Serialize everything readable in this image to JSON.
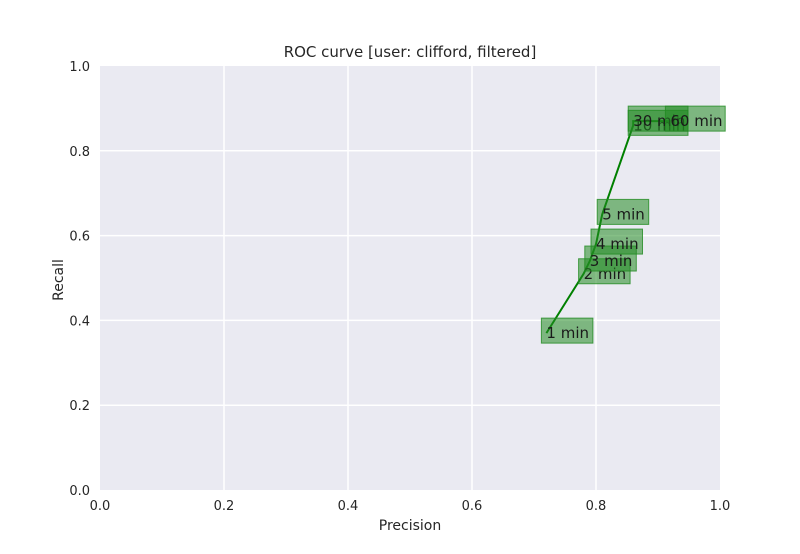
{
  "chart_data": {
    "type": "line",
    "title": "ROC curve [user: clifford, filtered]",
    "xlabel": "Precision",
    "ylabel": "Recall",
    "xlim": [
      0.0,
      1.0
    ],
    "ylim": [
      0.0,
      1.0
    ],
    "xticks": [
      "0.0",
      "0.2",
      "0.4",
      "0.6",
      "0.8",
      "1.0"
    ],
    "yticks": [
      "0.0",
      "0.2",
      "0.4",
      "0.6",
      "0.8",
      "1.0"
    ],
    "grid": true,
    "series": [
      {
        "x": [
          0.72,
          0.78,
          0.79,
          0.8,
          0.81,
          0.86,
          0.86,
          0.92
        ],
        "y": [
          0.37,
          0.51,
          0.54,
          0.58,
          0.65,
          0.86,
          0.87,
          0.87
        ],
        "point_labels": [
          "1 min",
          "2 min",
          "3 min",
          "4 min",
          "5 min",
          "10 min",
          "30 min",
          "60 min"
        ]
      }
    ],
    "colors": {
      "background": "#eaeaf2",
      "grid": "#ffffff",
      "line": "#008000",
      "label_box": "#228b22"
    }
  }
}
